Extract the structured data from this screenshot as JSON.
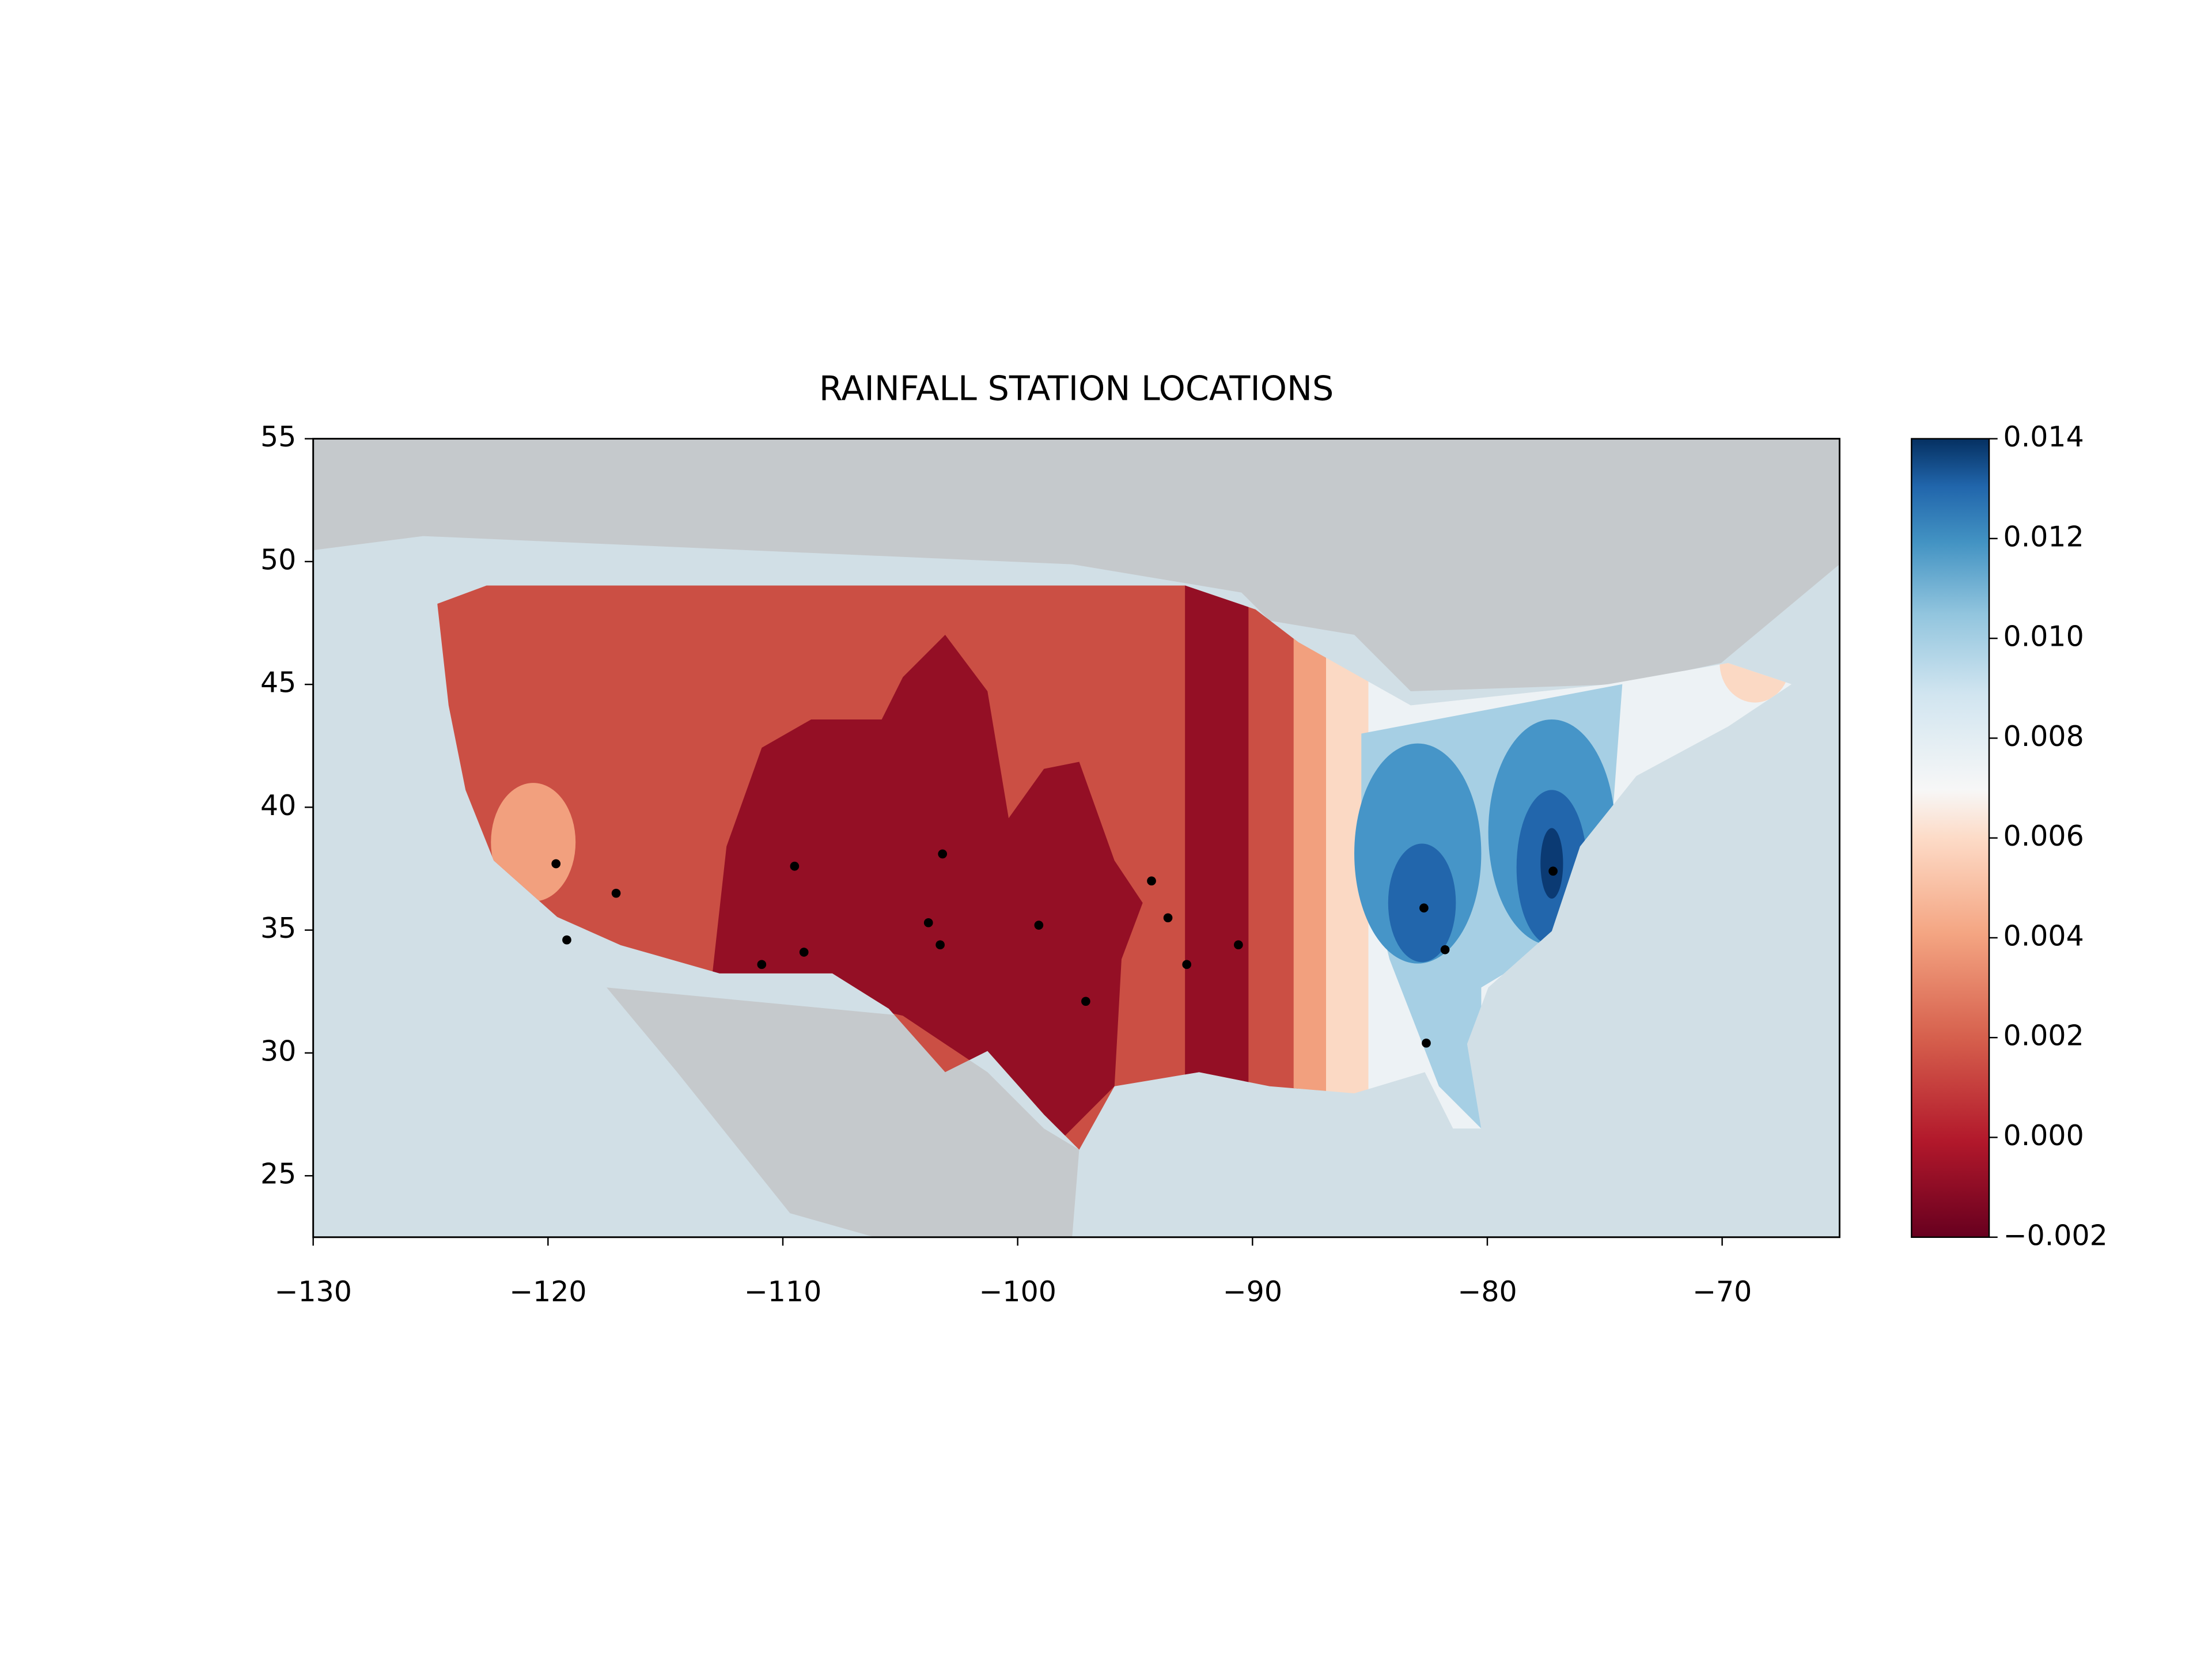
{
  "chart_data": {
    "type": "scatter",
    "title": "RAINFALL STATION LOCATIONS",
    "color": "#000000",
    "x": [
      -119.66,
      -117.1,
      -119.2,
      -109.5,
      -103.2,
      -109.1,
      -110.9,
      -103.8,
      -103.3,
      -99.1,
      -97.1,
      -94.3,
      -93.6,
      -92.8,
      -90.6,
      -82.7,
      -81.8,
      -82.6,
      -77.2
    ],
    "y": [
      37.7,
      36.5,
      34.6,
      37.6,
      38.1,
      34.1,
      33.6,
      35.3,
      34.4,
      35.2,
      32.1,
      37.0,
      35.5,
      33.6,
      34.4,
      35.9,
      34.2,
      30.4,
      37.4
    ],
    "xlim": [
      -130,
      -65
    ],
    "ylim": [
      22.5,
      55
    ],
    "xticks": [
      {
        "value": -130,
        "label": "−130"
      },
      {
        "value": -120,
        "label": "−120"
      },
      {
        "value": -110,
        "label": "−110"
      },
      {
        "value": -100,
        "label": "−100"
      },
      {
        "value": -90,
        "label": "−90"
      },
      {
        "value": -80,
        "label": "−80"
      },
      {
        "value": -70,
        "label": "−70"
      }
    ],
    "yticks": [
      25,
      30,
      35,
      40,
      45,
      50,
      55
    ],
    "colorbar": {
      "clim": [
        -0.002,
        0.014
      ],
      "ticks": [
        {
          "value": -0.002,
          "label": "−0.002"
        },
        {
          "value": 0,
          "label": "0.000"
        },
        {
          "value": 0.002,
          "label": "0.002"
        },
        {
          "value": 0.004,
          "label": "0.004"
        },
        {
          "value": 0.006,
          "label": "0.006"
        },
        {
          "value": 0.008,
          "label": "0.008"
        },
        {
          "value": 0.01,
          "label": "0.010"
        },
        {
          "value": 0.012,
          "label": "0.012"
        },
        {
          "value": 0.014,
          "label": "0.014"
        }
      ]
    }
  }
}
